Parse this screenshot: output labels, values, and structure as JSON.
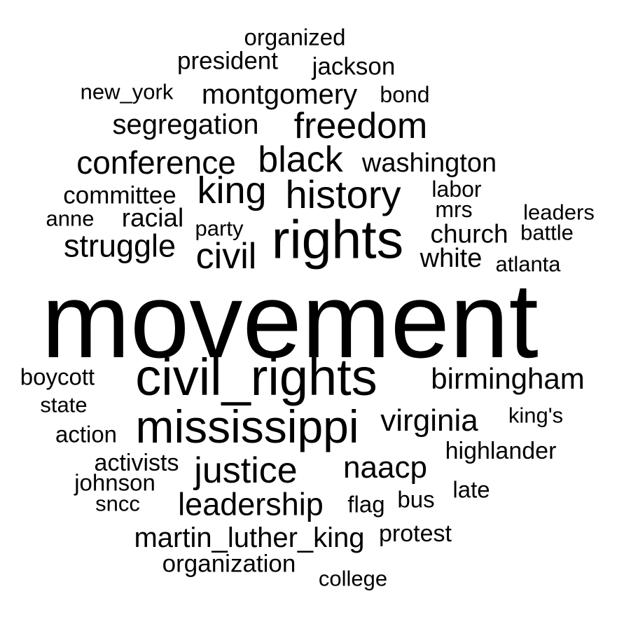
{
  "words": [
    {
      "text": "movement",
      "weight": 100
    },
    {
      "text": "rights",
      "weight": 52
    },
    {
      "text": "civil_rights",
      "weight": 50
    },
    {
      "text": "mississippi",
      "weight": 45
    },
    {
      "text": "history",
      "weight": 39
    },
    {
      "text": "king",
      "weight": 37
    },
    {
      "text": "black",
      "weight": 36
    },
    {
      "text": "freedom",
      "weight": 36
    },
    {
      "text": "civil",
      "weight": 36
    },
    {
      "text": "justice",
      "weight": 36
    },
    {
      "text": "conference",
      "weight": 32
    },
    {
      "text": "struggle",
      "weight": 31
    },
    {
      "text": "leadership",
      "weight": 31
    },
    {
      "text": "naacp",
      "weight": 30
    },
    {
      "text": "virginia",
      "weight": 30
    },
    {
      "text": "birmingham",
      "weight": 29
    },
    {
      "text": "segregation",
      "weight": 27
    },
    {
      "text": "montgomery",
      "weight": 27
    },
    {
      "text": "martin_luther_king",
      "weight": 27
    },
    {
      "text": "washington",
      "weight": 26
    },
    {
      "text": "white",
      "weight": 26
    },
    {
      "text": "racial",
      "weight": 25
    },
    {
      "text": "church",
      "weight": 25
    },
    {
      "text": "committee",
      "weight": 24
    },
    {
      "text": "jackson",
      "weight": 24
    },
    {
      "text": "president",
      "weight": 24
    },
    {
      "text": "organization",
      "weight": 24
    },
    {
      "text": "organized",
      "weight": 23
    },
    {
      "text": "highlander",
      "weight": 23
    },
    {
      "text": "protest",
      "weight": 23
    },
    {
      "text": "activists",
      "weight": 23
    },
    {
      "text": "labor",
      "weight": 22
    },
    {
      "text": "mrs",
      "weight": 22
    },
    {
      "text": "boycott",
      "weight": 22
    },
    {
      "text": "action",
      "weight": 22
    },
    {
      "text": "flag",
      "weight": 22
    },
    {
      "text": "bus",
      "weight": 22
    },
    {
      "text": "late",
      "weight": 22
    },
    {
      "text": "johnson",
      "weight": 22
    },
    {
      "text": "bond",
      "weight": 22
    },
    {
      "text": "new_york",
      "weight": 21
    },
    {
      "text": "party",
      "weight": 21
    },
    {
      "text": "anne",
      "weight": 21
    },
    {
      "text": "leaders",
      "weight": 21
    },
    {
      "text": "battle",
      "weight": 21
    },
    {
      "text": "atlanta",
      "weight": 21
    },
    {
      "text": "state",
      "weight": 21
    },
    {
      "text": "king's",
      "weight": 21
    },
    {
      "text": "sncc",
      "weight": 21
    },
    {
      "text": "college",
      "weight": 21
    }
  ]
}
